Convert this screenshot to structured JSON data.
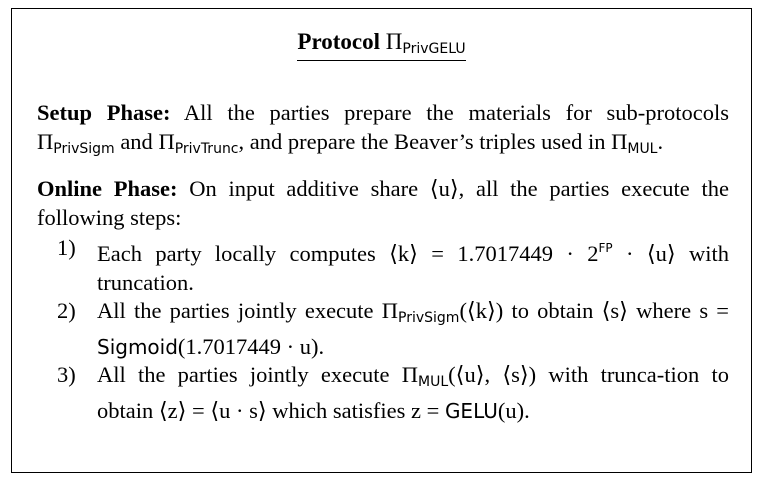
{
  "title": {
    "prefix": "Protocol",
    "pi": "Π",
    "subscript": "PrivGELU"
  },
  "setup": {
    "heading": "Setup Phase:",
    "text_a": "All the parties prepare the materials for sub-protocols",
    "pi1_sub": "PrivSigm",
    "text_b": "and",
    "pi2_sub": "PrivTrunc",
    "text_c": ", and prepare the Beaver’s triples used in",
    "pi3_sub": "MUL",
    "text_d": "."
  },
  "online": {
    "heading": "Online Phase:",
    "text": "On input additive share ⟨u⟩, all the parties execute the following steps:",
    "steps": [
      {
        "num": "1)",
        "a": "Each party locally computes ⟨k⟩ = 1.7017449 · 2",
        "sup": "FP",
        "b": " · ⟨u⟩ with truncation."
      },
      {
        "num": "2)",
        "a": "All the parties jointly execute Π",
        "sub": "PrivSigm",
        "b": "(⟨k⟩) to obtain ⟨s⟩ where s = ",
        "fn": "Sigmoid",
        "c": "(1.7017449 · u)."
      },
      {
        "num": "3)",
        "a": "All the parties jointly execute Π",
        "sub": "MUL",
        "b": "(⟨u⟩, ⟨s⟩) with trunca-tion to obtain ⟨z⟩ = ⟨u · s⟩ which satisfies z = ",
        "fn": "GELU",
        "c": "(u)."
      }
    ]
  }
}
